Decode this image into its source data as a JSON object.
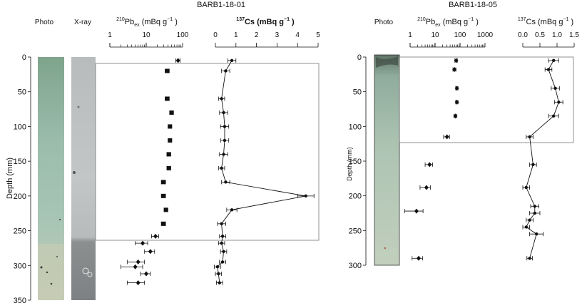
{
  "panels": [
    {
      "title": "BARB1-18-01",
      "photo_label": "Photo",
      "xray_label": "X-ray",
      "pb_label": {
        "sup": "210",
        "main": "Pb",
        "sub": "ex",
        "unit": " (mBq  g",
        "exp": "−1",
        "close": " )"
      },
      "cs_label": {
        "sup": "137",
        "main": "Cs (mBq  g",
        "exp": "−1",
        "close": " )"
      },
      "ylabel": "Depth (mm)"
    },
    {
      "title": "BARB1-18-05",
      "photo_label": "Photo",
      "pb_label": {
        "sup": "210",
        "main": "Pb",
        "sub": "ex",
        "unit": " (mBq  g",
        "exp": "−1",
        "close": " )"
      },
      "cs_label": {
        "sup": "137",
        "main": "Cs (mBq  g",
        "exp": "−1",
        "close": " )"
      },
      "ylabel": "Depth (mm)"
    }
  ],
  "chart_data": [
    {
      "type": "scatter",
      "title": "BARB1-18-01",
      "ylabel": "Depth (mm)",
      "ylim": [
        350,
        0
      ],
      "yticks": [
        0,
        50,
        100,
        150,
        200,
        250,
        300,
        350
      ],
      "pb210": {
        "xscale": "log",
        "xlim": [
          1,
          100
        ],
        "xticks": [
          1,
          10,
          100
        ],
        "xtick_labels": [
          "1",
          "10",
          "100"
        ],
        "points": [
          {
            "x": 75,
            "y": 5,
            "err": 10,
            "marker": "diamond"
          },
          {
            "x": 38,
            "y": 20,
            "err": 5,
            "marker": "square"
          },
          {
            "x": 38,
            "y": 60,
            "err": 5,
            "marker": "square"
          },
          {
            "x": 50,
            "y": 80,
            "err": 6,
            "marker": "square"
          },
          {
            "x": 45,
            "y": 100,
            "err": 5,
            "marker": "square"
          },
          {
            "x": 45,
            "y": 120,
            "err": 5,
            "marker": "square"
          },
          {
            "x": 42,
            "y": 140,
            "err": 5,
            "marker": "square"
          },
          {
            "x": 42,
            "y": 160,
            "err": 5,
            "marker": "square"
          },
          {
            "x": 30,
            "y": 180,
            "err": 4,
            "marker": "square"
          },
          {
            "x": 30,
            "y": 200,
            "err": 4,
            "marker": "square"
          },
          {
            "x": 35,
            "y": 220,
            "err": 4,
            "marker": "square"
          },
          {
            "x": 30,
            "y": 240,
            "err": 4,
            "marker": "square"
          },
          {
            "x": 18,
            "y": 258,
            "err": 4,
            "marker": "diamond"
          },
          {
            "x": 8,
            "y": 268,
            "err": 3,
            "marker": "diamond"
          },
          {
            "x": 13,
            "y": 280,
            "err": 4,
            "marker": "diamond"
          },
          {
            "x": 6,
            "y": 295,
            "err": 3,
            "marker": "diamond"
          },
          {
            "x": 5,
            "y": 302,
            "err": 3,
            "marker": "diamond"
          },
          {
            "x": 10,
            "y": 312,
            "err": 3,
            "marker": "diamond"
          },
          {
            "x": 6,
            "y": 325,
            "err": 3,
            "marker": "diamond"
          }
        ]
      },
      "cs137": {
        "xscale": "linear",
        "xlim": [
          0,
          5
        ],
        "xticks": [
          0,
          1,
          2,
          3,
          4,
          5
        ],
        "connected": true,
        "points": [
          {
            "x": 0.8,
            "y": 5,
            "err": 0.2
          },
          {
            "x": 0.5,
            "y": 20,
            "err": 0.2
          },
          {
            "x": 0.3,
            "y": 60,
            "err": 0.15
          },
          {
            "x": 0.4,
            "y": 80,
            "err": 0.2
          },
          {
            "x": 0.45,
            "y": 100,
            "err": 0.2
          },
          {
            "x": 0.45,
            "y": 120,
            "err": 0.2
          },
          {
            "x": 0.4,
            "y": 140,
            "err": 0.2
          },
          {
            "x": 0.3,
            "y": 160,
            "err": 0.15
          },
          {
            "x": 0.5,
            "y": 180,
            "err": 0.2
          },
          {
            "x": 4.4,
            "y": 200,
            "err": 0.4
          },
          {
            "x": 0.8,
            "y": 220,
            "err": 0.25
          },
          {
            "x": 0.3,
            "y": 240,
            "err": 0.2
          },
          {
            "x": 0.35,
            "y": 258,
            "err": 0.15
          },
          {
            "x": 0.3,
            "y": 268,
            "err": 0.15
          },
          {
            "x": 0.4,
            "y": 280,
            "err": 0.15
          },
          {
            "x": 0.35,
            "y": 295,
            "err": 0.15
          },
          {
            "x": 0.1,
            "y": 302,
            "err": 0.15
          },
          {
            "x": 0.15,
            "y": 312,
            "err": 0.15
          },
          {
            "x": 0.2,
            "y": 325,
            "err": 0.15
          }
        ]
      }
    },
    {
      "type": "scatter",
      "title": "BARB1-18-05",
      "ylabel": "Depth (mm)",
      "ylim": [
        300,
        0
      ],
      "yticks": [
        0,
        50,
        100,
        150,
        200,
        250,
        300
      ],
      "pb210": {
        "xscale": "log",
        "xlim": [
          1,
          1000
        ],
        "xticks": [
          1,
          10,
          100,
          1000
        ],
        "xtick_labels": [
          "1",
          "10",
          "100",
          "1000"
        ],
        "points": [
          {
            "x": 70,
            "y": 5,
            "err": 8
          },
          {
            "x": 60,
            "y": 18,
            "err": 8
          },
          {
            "x": 75,
            "y": 45,
            "err": 8
          },
          {
            "x": 75,
            "y": 65,
            "err": 8
          },
          {
            "x": 65,
            "y": 85,
            "err": 8
          },
          {
            "x": 30,
            "y": 115,
            "err": 8
          },
          {
            "x": 6,
            "y": 155,
            "err": 2
          },
          {
            "x": 4.5,
            "y": 188,
            "err": 2
          },
          {
            "x": 1.8,
            "y": 222,
            "err": 1.5
          },
          {
            "x": 2.2,
            "y": 290,
            "err": 1
          }
        ]
      },
      "cs137": {
        "xscale": "linear",
        "xlim": [
          0,
          1.5
        ],
        "xticks": [
          0,
          0.5,
          1,
          1.5
        ],
        "xtick_labels": [
          "0.0",
          "0.5",
          "1.0",
          "1.5"
        ],
        "connected": true,
        "points": [
          {
            "x": 0.9,
            "y": 5,
            "err": 0.15
          },
          {
            "x": 0.75,
            "y": 18,
            "err": 0.1
          },
          {
            "x": 0.95,
            "y": 45,
            "err": 0.12
          },
          {
            "x": 1.05,
            "y": 65,
            "err": 0.12
          },
          {
            "x": 0.9,
            "y": 85,
            "err": 0.15
          },
          {
            "x": 0.2,
            "y": 115,
            "err": 0.1
          },
          {
            "x": 0.3,
            "y": 155,
            "err": 0.1
          },
          {
            "x": 0.1,
            "y": 188,
            "err": 0.1
          },
          {
            "x": 0.35,
            "y": 215,
            "err": 0.12
          },
          {
            "x": 0.35,
            "y": 225,
            "err": 0.15
          },
          {
            "x": 0.2,
            "y": 235,
            "err": 0.1
          },
          {
            "x": 0.1,
            "y": 245,
            "err": 0.1
          },
          {
            "x": 0.4,
            "y": 255,
            "err": 0.2
          },
          {
            "x": 0.2,
            "y": 290,
            "err": 0.08
          }
        ]
      }
    }
  ]
}
